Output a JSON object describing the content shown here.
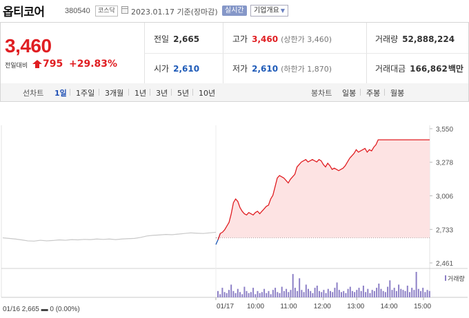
{
  "header": {
    "name": "옵티코어",
    "code": "380540",
    "market": "코스닥",
    "date_text": "2023.01.17 기준(장마감)",
    "realtime_label": "실시간",
    "corp_info_label": "기업개요"
  },
  "quote": {
    "price": "3,460",
    "change_label": "전일대비",
    "change": "795",
    "change_pct": "+29.83%",
    "prev_label": "전일",
    "prev": "2,665",
    "high_label": "고가",
    "high": "3,460",
    "upper_limit": "(상한가 3,460)",
    "volume_label": "거래량",
    "volume": "52,888,224",
    "open_label": "시가",
    "open": "2,610",
    "low_label": "저가",
    "low": "2,610",
    "lower_limit": "(하한가 1,870)",
    "amount_label": "거래대금",
    "amount": "166,862",
    "amount_unit": "백만"
  },
  "toolbar": {
    "line_label": "선차트",
    "periods": [
      "1일",
      "1주일",
      "3개월",
      "1년",
      "3년",
      "5년",
      "10년"
    ],
    "selected_period": "1일",
    "candle_label": "봉차트",
    "candles": [
      "일봉",
      "주봉",
      "월봉"
    ]
  },
  "colors": {
    "up": "#e01e22",
    "down": "#1f5bb8",
    "volume": "#8c7fc6",
    "prev_line": "#c8c8c8"
  },
  "chart_data": {
    "type": "line",
    "prev_day_label": "01/16 2,665 ▬ 0 (0.00%)",
    "volume_label": "거래량",
    "y_ticks": [
      "3,550",
      "3,278",
      "3,006",
      "2,733",
      "2,461"
    ],
    "ylim": [
      2461,
      3550
    ],
    "x_ticks": [
      "01/17",
      "10:00",
      "11:00",
      "12:00",
      "13:00",
      "14:00",
      "15:00"
    ],
    "reference_price": 2665,
    "prev_day_series": {
      "name": "01/16",
      "values": [
        2665,
        2660,
        2655,
        2648,
        2640,
        2638,
        2645,
        2640,
        2643,
        2648,
        2645,
        2650,
        2648,
        2652,
        2650,
        2655,
        2652,
        2655,
        2650,
        2655,
        2658,
        2660,
        2668,
        2680,
        2685,
        2688,
        2692,
        2690,
        2695,
        2700,
        2705,
        2702,
        2700,
        2705,
        2710
      ]
    },
    "today_series": {
      "name": "01/17",
      "times": [
        0,
        4,
        8,
        12,
        16,
        20,
        24,
        28,
        32,
        36,
        40,
        44,
        48,
        52,
        56,
        60,
        64,
        68,
        72,
        76,
        80,
        84,
        88,
        92,
        96,
        100,
        104,
        108,
        112,
        116,
        120,
        124,
        128,
        132,
        136,
        140,
        144,
        148,
        152,
        156,
        160,
        164,
        168,
        172,
        176,
        180,
        184,
        188,
        192,
        196,
        200,
        204,
        208,
        212,
        216,
        220,
        224,
        228,
        232,
        236,
        240,
        244,
        248,
        252,
        256,
        260,
        264,
        268,
        272,
        276,
        280,
        284,
        288,
        292,
        296,
        300,
        304,
        308,
        312,
        316,
        320,
        324,
        328,
        332,
        336,
        340,
        344,
        348,
        352,
        356,
        360,
        364,
        368,
        372,
        376,
        380,
        390
      ],
      "values": [
        2610,
        2650,
        2700,
        2710,
        2730,
        2760,
        2790,
        2860,
        2950,
        2980,
        2960,
        2910,
        2880,
        2860,
        2850,
        2870,
        2860,
        2850,
        2870,
        2880,
        2860,
        2880,
        2900,
        2920,
        2930,
        2980,
        3010,
        3080,
        3150,
        3170,
        3160,
        3150,
        3130,
        3110,
        3140,
        3160,
        3180,
        3240,
        3260,
        3280,
        3290,
        3300,
        3280,
        3290,
        3300,
        3290,
        3280,
        3300,
        3290,
        3260,
        3240,
        3270,
        3250,
        3220,
        3230,
        3220,
        3210,
        3220,
        3230,
        3250,
        3280,
        3310,
        3330,
        3350,
        3380,
        3360,
        3370,
        3380,
        3390,
        3360,
        3380,
        3370,
        3400,
        3420,
        3460,
        3460,
        3460,
        3460,
        3460,
        3460,
        3460,
        3460,
        3460,
        3460,
        3460,
        3460,
        3460,
        3460,
        3460,
        3460,
        3460,
        3460,
        3460,
        3460,
        3460,
        3460,
        3460
      ]
    },
    "volume_series": {
      "name": "거래량",
      "values": [
        6,
        3,
        9,
        5,
        4,
        7,
        12,
        6,
        4,
        8,
        5,
        3,
        10,
        6,
        4,
        5,
        9,
        3,
        6,
        4,
        5,
        8,
        4,
        6,
        3,
        7,
        9,
        5,
        4,
        10,
        6,
        8,
        5,
        7,
        22,
        9,
        6,
        18,
        7,
        5,
        12,
        8,
        6,
        4,
        9,
        11,
        6,
        5,
        7,
        4,
        8,
        6,
        5,
        9,
        14,
        7,
        5,
        6,
        4,
        8,
        10,
        6,
        5,
        7,
        9,
        6,
        11,
        5,
        8,
        4,
        7,
        6,
        9,
        13,
        8,
        6,
        5,
        10,
        16,
        7,
        9,
        6,
        12,
        8,
        7,
        6,
        11,
        5,
        9,
        7,
        24,
        8,
        6,
        9,
        5,
        7,
        6
      ]
    }
  }
}
